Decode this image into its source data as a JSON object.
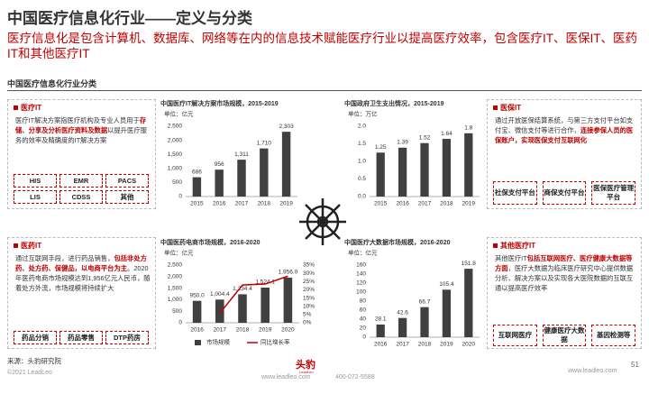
{
  "header": {
    "title": "中国医疗信息化行业——定义与分类",
    "subtitle": "医疗信息化是包含计算机、数据库、网络等在内的信息技术赋能医疗行业以提高医疗效率，包含医疗IT、医保IT、医药IT和其他医疗IT"
  },
  "section_title": "中国医疗信息化行业分类",
  "panels": [
    {
      "title": "医疗IT",
      "body": [
        {
          "text": "医疗IT解决方案指医疗机构及专业人员用于",
          "em": false
        },
        {
          "text": "存储、分享及分析医疗资料及数据",
          "em": true
        },
        {
          "text": "以提升医疗服务的效率及精确度的IT解决方案",
          "em": false
        }
      ],
      "tags": [
        "HIS",
        "EMR",
        "PACS",
        "LIS",
        "CDSS",
        "其他"
      ]
    },
    {
      "title": "医保IT",
      "body": [
        {
          "text": "通过开放医保结算系统，与第三方支付平台如支付宝、微信支付等进行合作，",
          "em": false
        },
        {
          "text": "连接参保人员的医保账户，实现医保支付互联网化",
          "em": true
        }
      ],
      "tags": [
        "社保支付平台",
        "商保支付平台",
        "医保医疗管理平台"
      ]
    },
    {
      "title": "医药IT",
      "body": [
        {
          "text": "通过互联网手段，进行药品销售，",
          "em": false
        },
        {
          "text": "包括非处方药、处方药、保健品，以电商平台为主",
          "em": true
        },
        {
          "text": "。2020年医药电商市场规模达到1,956亿元人民币，随着处方外流，市场规模将持续扩大",
          "em": false
        }
      ],
      "tags": [
        "药品分销",
        "药品零售",
        "DTP药房"
      ]
    },
    {
      "title": "其他医疗IT",
      "body": [
        {
          "text": "其他医疗IT",
          "em": false
        },
        {
          "text": "包括互联网医疗、医疗健康大数据等方面",
          "em": true
        },
        {
          "text": "，医疗大数据为临床医疗研究中心提供数据分析、解决方案以及实现各大医院数据的互联互通以提高医疗效率",
          "em": false
        }
      ],
      "tags": [
        "互联网医疗",
        "健康医疗大数据",
        "基因检测等"
      ]
    }
  ],
  "chart_data": [
    {
      "type": "bar",
      "title": "中国医疗IT解决方案市场规模，2015-2019",
      "unit": "单位：亿元",
      "categories": [
        "2015",
        "2016",
        "2017",
        "2018",
        "2019"
      ],
      "values": [
        686,
        956,
        1311,
        1710,
        2303
      ],
      "value_labels": [
        "686",
        "956",
        "1,311",
        "1,710",
        "2,303"
      ],
      "color": "#404040",
      "ylim": [
        0,
        2500
      ],
      "yticks": [
        0,
        500,
        {
          "value": 1000,
          "label": "1,000"
        },
        {
          "value": 1500,
          "label": "1,500"
        },
        {
          "value": 2000,
          "label": "2,000"
        },
        {
          "value": 2500,
          "label": "2,500"
        }
      ],
      "grid": false
    },
    {
      "type": "bar",
      "title": "中国政府卫生支出情况，2015-2019",
      "unit": "单位：万亿",
      "categories": [
        "2015",
        "2016",
        "2017",
        "2018",
        "2019"
      ],
      "values": [
        1.25,
        1.39,
        1.52,
        1.64,
        1.8
      ],
      "color": "#404040",
      "ylim": [
        0,
        2
      ],
      "yticks": [
        {
          "value": 0,
          "label": "0.0"
        },
        0.5,
        {
          "value": 1,
          "label": "1.0"
        },
        1.5,
        {
          "value": 2,
          "label": "2.0"
        }
      ],
      "grid": false
    },
    {
      "type": "bar",
      "title": "中国医药电商市场规模，2016-2020",
      "unit": "单位：亿元",
      "categories": [
        "2016",
        "2017",
        "2018",
        "2019",
        "2020"
      ],
      "series": [
        {
          "name": "市场规模",
          "color": "#404040",
          "values": [
            950.0,
            1004.4,
            1234.4,
            1524.1,
            1956.0
          ],
          "value_labels": [
            "950.0",
            "1,004.4",
            "1,234.4",
            "1,524.1",
            "1,956.0"
          ]
        },
        {
          "name": "同比增长率",
          "type": "line",
          "axis": "y2",
          "color": "#c00000",
          "values": [
            null,
            5.7,
            22.9,
            23.5,
            28.3
          ]
        }
      ],
      "ylim": [
        0,
        2500
      ],
      "yticks": [
        0,
        500,
        {
          "value": 1000,
          "label": "1,000"
        },
        {
          "value": 1500,
          "label": "1,500"
        },
        {
          "value": 2000,
          "label": "2,000"
        },
        {
          "value": 2500,
          "label": "2,500"
        }
      ],
      "y2lim": [
        0,
        35
      ],
      "y2ticks": [
        {
          "value": 0,
          "label": "0%"
        },
        {
          "value": 5,
          "label": "5%"
        },
        {
          "value": 10,
          "label": "10%"
        },
        {
          "value": 15,
          "label": "15%"
        },
        {
          "value": 20,
          "label": "20%"
        },
        {
          "value": 25,
          "label": "25%"
        },
        {
          "value": 30,
          "label": "30%"
        },
        {
          "value": 35,
          "label": "35%"
        }
      ],
      "grid": false,
      "legend": "bottom"
    },
    {
      "type": "bar",
      "title": "中国医疗大数据市场规模，2016-2020",
      "unit": "单位：亿元",
      "categories": [
        "2016",
        "2017",
        "2018",
        "2019",
        "2020"
      ],
      "values": [
        28.1,
        42.6,
        66.7,
        105.4,
        151.8
      ],
      "color": "#404040",
      "ylim": [
        0,
        160
      ],
      "yticks": [
        0,
        20,
        40,
        60,
        80,
        100,
        120,
        140,
        160
      ],
      "grid": false
    }
  ],
  "footer": {
    "source": "来源：头豹研究院",
    "copyright": "©2021 LeadLeo",
    "logo": "头豹",
    "logo_sub": "LeadLeo",
    "website": "www.leadleo.com",
    "phone": "400-072-5588",
    "website_right": "www.leadleo.com",
    "page": "51"
  }
}
